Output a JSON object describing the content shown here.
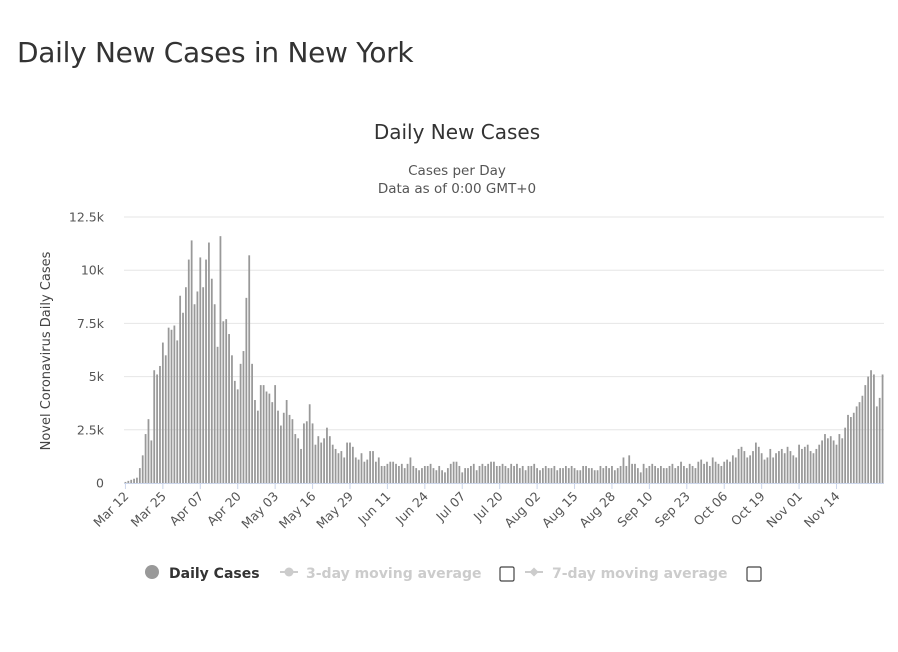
{
  "page": {
    "title": "Daily New Cases in New York"
  },
  "colors": {
    "bars": "#999999",
    "grid": "#e6e6e6",
    "axis": "#ccd6eb",
    "legend_active": "#333333",
    "legend_inactive": "#cccccc"
  },
  "chart_data": {
    "type": "bar",
    "title": "Daily New Cases",
    "subtitle_lines": [
      "Cases per Day",
      "Data as of 0:00 GMT+0"
    ],
    "ylabel": "Novel Coronavirus Daily Cases",
    "xlabel": "",
    "ylim": [
      0,
      12500
    ],
    "yticks": [
      0,
      2500,
      5000,
      7500,
      10000,
      12500
    ],
    "ytick_labels": [
      "0",
      "2.5k",
      "5k",
      "7.5k",
      "10k",
      "12.5k"
    ],
    "grid": true,
    "start_date": "Mar 12",
    "xtick_labels": [
      "Mar 12",
      "Mar 25",
      "Apr 07",
      "Apr 20",
      "May 03",
      "May 16",
      "May 29",
      "Jun 11",
      "Jun 24",
      "Jul 07",
      "Jul 20",
      "Aug 02",
      "Aug 15",
      "Aug 28",
      "Sep 10",
      "Sep 23",
      "Oct 06",
      "Oct 19",
      "Nov 01",
      "Nov 14"
    ],
    "series": [
      {
        "name": "Daily Cases",
        "values": [
          50,
          100,
          150,
          200,
          250,
          700,
          1300,
          2300,
          3000,
          2000,
          5300,
          5100,
          5500,
          6600,
          6000,
          7300,
          7200,
          7400,
          6700,
          8800,
          8000,
          9200,
          10500,
          11400,
          8400,
          9000,
          10600,
          9200,
          10500,
          11300,
          9600,
          8400,
          6400,
          11600,
          7600,
          7700,
          7000,
          6000,
          4800,
          4400,
          5600,
          6200,
          8700,
          10700,
          5600,
          3900,
          3400,
          4600,
          4600,
          4300,
          4200,
          3800,
          4600,
          3400,
          2700,
          3300,
          3900,
          3200,
          3000,
          2300,
          2100,
          1600,
          2800,
          2900,
          3700,
          2800,
          1800,
          2200,
          1900,
          2100,
          2600,
          2200,
          1800,
          1600,
          1400,
          1500,
          1200,
          1900,
          1900,
          1700,
          1200,
          1100,
          1400,
          1000,
          1100,
          1500,
          1500,
          1000,
          1200,
          800,
          800,
          900,
          1000,
          1000,
          900,
          800,
          900,
          700,
          900,
          1200,
          800,
          700,
          600,
          700,
          800,
          800,
          900,
          700,
          600,
          800,
          600,
          500,
          700,
          900,
          1000,
          1000,
          800,
          500,
          700,
          700,
          800,
          900,
          600,
          800,
          900,
          800,
          900,
          1000,
          1000,
          800,
          800,
          900,
          800,
          700,
          900,
          800,
          900,
          700,
          800,
          600,
          800,
          800,
          900,
          700,
          600,
          700,
          800,
          700,
          700,
          800,
          600,
          700,
          700,
          800,
          700,
          800,
          700,
          600,
          600,
          800,
          800,
          700,
          700,
          600,
          600,
          800,
          700,
          800,
          700,
          800,
          600,
          700,
          800,
          1200,
          800,
          1300,
          900,
          900,
          700,
          500,
          900,
          700,
          800,
          900,
          800,
          700,
          800,
          700,
          700,
          800,
          900,
          700,
          800,
          1000,
          800,
          700,
          900,
          800,
          700,
          1000,
          1100,
          900,
          1000,
          800,
          1200,
          1000,
          900,
          800,
          1000,
          1100,
          1000,
          1300,
          1200,
          1600,
          1700,
          1500,
          1200,
          1300,
          1500,
          1900,
          1700,
          1400,
          1100,
          1200,
          1600,
          1200,
          1400,
          1500,
          1600,
          1400,
          1700,
          1500,
          1300,
          1200,
          1800,
          1600,
          1700,
          1800,
          1500,
          1400,
          1600,
          1800,
          2000,
          2300,
          2100,
          2200,
          2000,
          1800,
          2300,
          2100,
          2600,
          3200,
          3100,
          3300,
          3600,
          3800,
          4100,
          4600,
          5000,
          5300,
          5100,
          3600,
          4000,
          5100
        ]
      }
    ]
  },
  "legend": {
    "items": [
      {
        "label": "Daily Cases",
        "active": true
      },
      {
        "label": "3-day moving average",
        "active": false
      },
      {
        "label": "7-day moving average",
        "active": false
      }
    ]
  }
}
